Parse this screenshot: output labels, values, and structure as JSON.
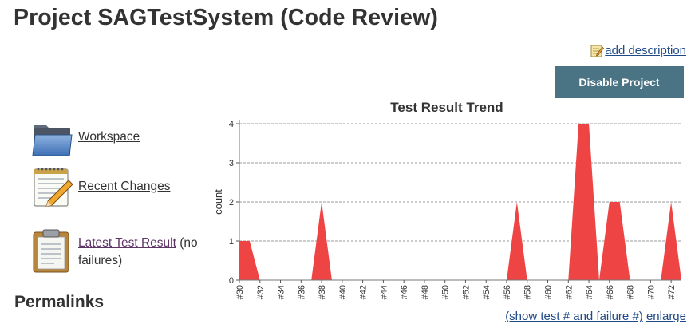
{
  "page": {
    "title": "Project SAGTestSystem (Code Review)",
    "add_description": "add description",
    "disable_button": "Disable Project",
    "permalinks_heading": "Permalinks"
  },
  "tasks": {
    "workspace": "Workspace",
    "recent_changes": "Recent Changes",
    "latest_test_result": "Latest Test Result",
    "latest_test_suffix": " (no failures)"
  },
  "chart_links": {
    "show_test": "(show test # and failure #)",
    "enlarge": "enlarge"
  },
  "colors": {
    "fail": "#ef4444",
    "button": "#4a7384",
    "link": "#204a87"
  },
  "chart_data": {
    "type": "area",
    "title": "Test Result Trend",
    "xlabel": "",
    "ylabel": "count",
    "ylim": [
      0,
      4
    ],
    "y_ticks": [
      "0",
      "1",
      "2",
      "3",
      "4"
    ],
    "x": [
      "#30",
      "#31",
      "#32",
      "#33",
      "#34",
      "#35",
      "#36",
      "#37",
      "#38",
      "#39",
      "#40",
      "#41",
      "#42",
      "#43",
      "#44",
      "#45",
      "#46",
      "#47",
      "#48",
      "#49",
      "#50",
      "#51",
      "#52",
      "#53",
      "#54",
      "#55",
      "#56",
      "#57",
      "#58",
      "#59",
      "#60",
      "#61",
      "#62",
      "#63",
      "#64",
      "#65",
      "#66",
      "#67",
      "#68",
      "#69",
      "#70",
      "#71",
      "#72",
      "#73"
    ],
    "x_tick_labels": [
      "#30",
      "#32",
      "#34",
      "#36",
      "#38",
      "#40",
      "#42",
      "#44",
      "#46",
      "#48",
      "#50",
      "#52",
      "#54",
      "#56",
      "#58",
      "#60",
      "#62",
      "#64",
      "#66",
      "#68",
      "#70",
      "#72"
    ],
    "grid": true,
    "series": [
      {
        "name": "",
        "values": [
          1,
          1,
          0,
          0,
          0,
          0,
          0,
          0,
          2,
          0,
          0,
          0,
          0,
          0,
          0,
          0,
          0,
          0,
          0,
          0,
          0,
          0,
          0,
          0,
          0,
          0,
          0,
          2,
          0,
          0,
          0,
          0,
          0,
          4,
          4,
          0,
          2,
          2,
          0,
          0,
          0,
          0,
          2,
          0
        ]
      }
    ]
  }
}
